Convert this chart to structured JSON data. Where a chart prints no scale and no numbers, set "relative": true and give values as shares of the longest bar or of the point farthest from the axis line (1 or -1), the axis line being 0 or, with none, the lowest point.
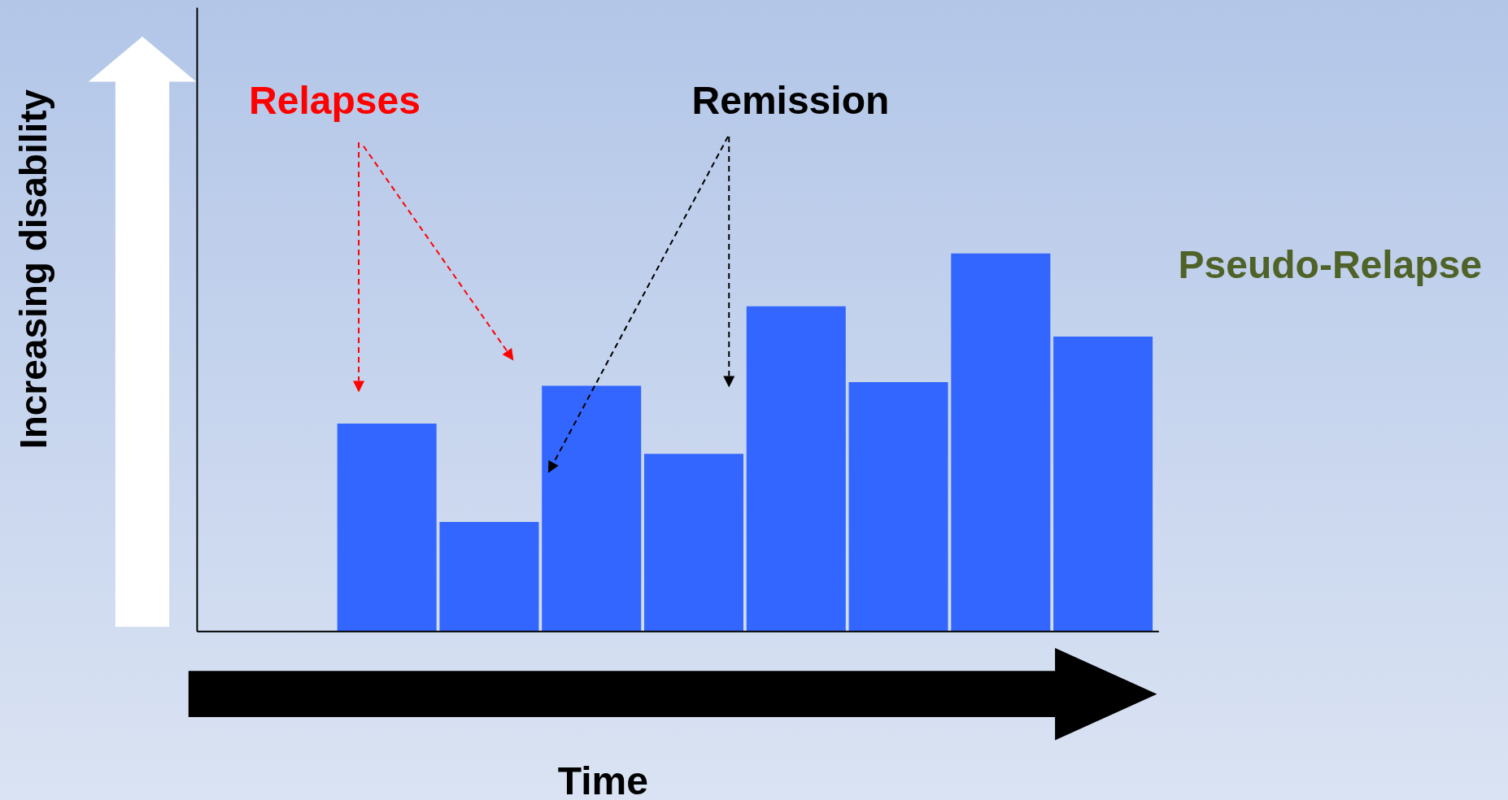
{
  "chart_data": {
    "type": "bar",
    "relative": true,
    "xlabel": "Time",
    "categories": [
      null,
      null,
      null,
      null,
      null,
      null,
      null,
      null
    ],
    "values": [
      0.55,
      0.29,
      0.65,
      0.47,
      0.86,
      0.66,
      1,
      0.78
    ],
    "color": "#3366ff",
    "annotations": [
      "Relapses",
      "Remission",
      "Pseudo-Relapse",
      "Increasing disability"
    ],
    "grid": false,
    "legend": false
  }
}
